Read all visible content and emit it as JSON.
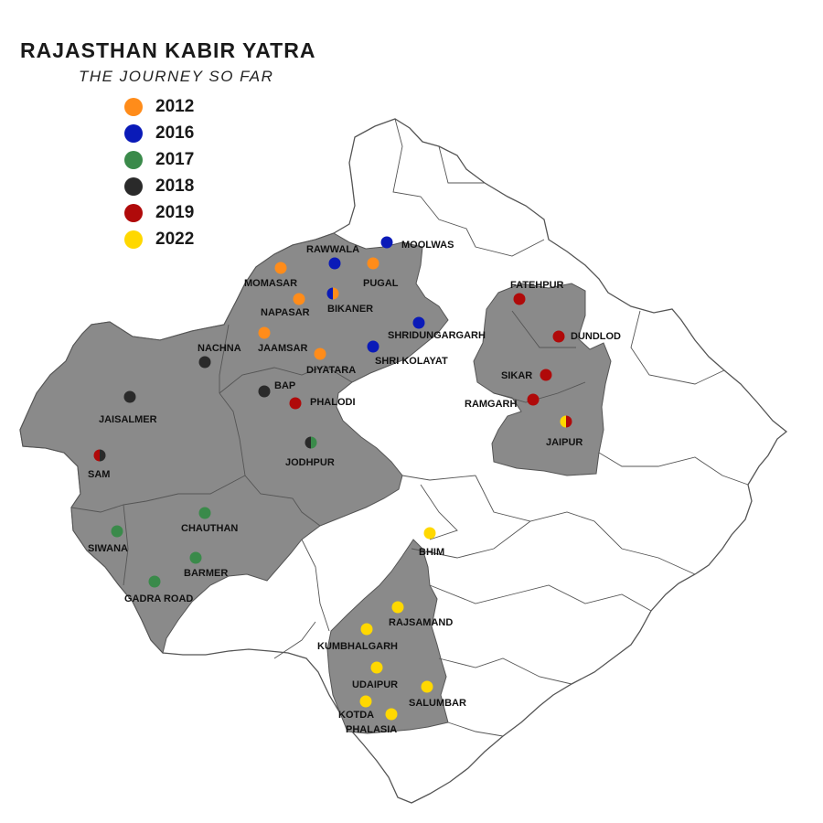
{
  "title": "RAJASTHAN KABIR YATRA",
  "subtitle": "THE JOURNEY SO FAR",
  "colors": {
    "2012": "#ff8c1a",
    "2016": "#0a1ab8",
    "2017": "#3a8a4a",
    "2018": "#2a2a2a",
    "2019": "#b00a0a",
    "2022": "#ffd800",
    "covered_region": "#8a8a8a",
    "uncovered_region": "#ffffff",
    "border": "#555555"
  },
  "legend": [
    {
      "year": "2012",
      "color": "#ff8c1a"
    },
    {
      "year": "2016",
      "color": "#0a1ab8"
    },
    {
      "year": "2017",
      "color": "#3a8a4a"
    },
    {
      "year": "2018",
      "color": "#2a2a2a"
    },
    {
      "year": "2019",
      "color": "#b00a0a"
    },
    {
      "year": "2022",
      "color": "#ffd800"
    }
  ],
  "places": [
    {
      "name": "RAWWALA",
      "years": [
        "2016"
      ]
    },
    {
      "name": "MOOLWAS",
      "years": [
        "2016"
      ]
    },
    {
      "name": "MOMASAR",
      "years": [
        "2012"
      ]
    },
    {
      "name": "PUGAL",
      "years": [
        "2012"
      ]
    },
    {
      "name": "NAPASAR",
      "years": [
        "2012"
      ]
    },
    {
      "name": "BIKANER",
      "years": [
        "2016",
        "2012"
      ]
    },
    {
      "name": "JAAMSAR",
      "years": [
        "2012"
      ]
    },
    {
      "name": "SHRIDUNGARGARH",
      "years": [
        "2016"
      ]
    },
    {
      "name": "NACHNA",
      "years": [
        "2018"
      ]
    },
    {
      "name": "DIYATARA",
      "years": [
        "2012"
      ]
    },
    {
      "name": "SHRI KOLAYAT",
      "years": [
        "2016"
      ]
    },
    {
      "name": "BAP",
      "years": [
        "2018"
      ]
    },
    {
      "name": "PHALODI",
      "years": [
        "2019"
      ]
    },
    {
      "name": "JAISALMER",
      "years": [
        "2018"
      ]
    },
    {
      "name": "SAM",
      "years": [
        "2019",
        "2018"
      ]
    },
    {
      "name": "JODHPUR",
      "years": [
        "2018",
        "2017"
      ]
    },
    {
      "name": "CHAUTHAN",
      "years": [
        "2017"
      ]
    },
    {
      "name": "SIWANA",
      "years": [
        "2017"
      ]
    },
    {
      "name": "BARMER",
      "years": [
        "2017"
      ]
    },
    {
      "name": "GADRA ROAD",
      "years": [
        "2017"
      ]
    },
    {
      "name": "FATEHPUR",
      "years": [
        "2019"
      ]
    },
    {
      "name": "DUNDLOD",
      "years": [
        "2019"
      ]
    },
    {
      "name": "SIKAR",
      "years": [
        "2019"
      ]
    },
    {
      "name": "RAMGARH",
      "years": [
        "2019"
      ]
    },
    {
      "name": "JAIPUR",
      "years": [
        "2022",
        "2019"
      ]
    },
    {
      "name": "BHIM",
      "years": [
        "2022"
      ]
    },
    {
      "name": "RAJSAMAND",
      "years": [
        "2022"
      ]
    },
    {
      "name": "KUMBHALGARH",
      "years": [
        "2022"
      ]
    },
    {
      "name": "UDAIPUR",
      "years": [
        "2022"
      ]
    },
    {
      "name": "SALUMBAR",
      "years": [
        "2022"
      ]
    },
    {
      "name": "KOTDA",
      "years": [
        "2022"
      ]
    },
    {
      "name": "PHALASIA",
      "years": [
        "2022"
      ]
    }
  ]
}
